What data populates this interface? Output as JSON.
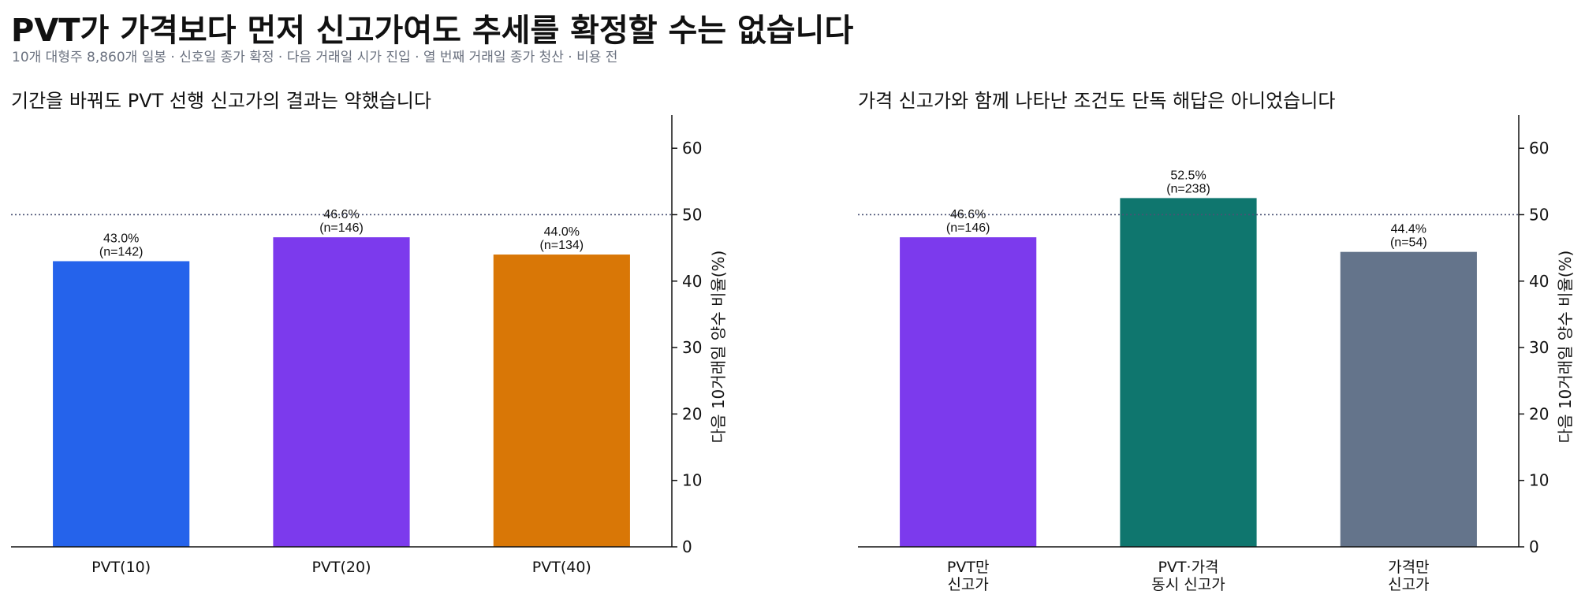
{
  "header": {
    "title": "PVT가 가격보다 먼저 신고가여도 추세를 확정할 수는 없습니다",
    "subtitle": "10개 대형주 8,860개 일봉 · 신호일 종가 확정 · 다음 거래일 시가 진입 · 열 번째 거래일 종가 청산 · 비용 전"
  },
  "chart_data": [
    {
      "type": "bar",
      "title": "기간을 바꿔도 PVT 선행 신고가의 결과는 약했습니다",
      "ylabel": "다음 10거래일 양수 비율(%)",
      "ylim": [
        0,
        65
      ],
      "yticks": [
        0,
        10,
        20,
        30,
        40,
        50,
        60
      ],
      "y_axis_side": "right",
      "reference_line": 50,
      "categories": [
        [
          "PVT(10)"
        ],
        [
          "PVT(20)"
        ],
        [
          "PVT(40)"
        ]
      ],
      "values": [
        43.0,
        46.6,
        44.0
      ],
      "value_labels": [
        "43.0%",
        "46.6%",
        "44.0%"
      ],
      "n_labels": [
        "(n=142)",
        "(n=146)",
        "(n=134)"
      ],
      "colors": [
        "#2563eb",
        "#7c3aed",
        "#d97706"
      ]
    },
    {
      "type": "bar",
      "title": "가격 신고가와 함께 나타난 조건도 단독 해답은 아니었습니다",
      "ylabel": "다음 10거래일 양수 비율(%)",
      "ylim": [
        0,
        65
      ],
      "yticks": [
        0,
        10,
        20,
        30,
        40,
        50,
        60
      ],
      "y_axis_side": "right",
      "reference_line": 50,
      "categories": [
        [
          "PVT만",
          "신고가"
        ],
        [
          "PVT·가격",
          "동시 신고가"
        ],
        [
          "가격만",
          "신고가"
        ]
      ],
      "values": [
        46.6,
        52.5,
        44.4
      ],
      "value_labels": [
        "46.6%",
        "52.5%",
        "44.4%"
      ],
      "n_labels": [
        "(n=146)",
        "(n=238)",
        "(n=54)"
      ],
      "colors": [
        "#7c3aed",
        "#0f766e",
        "#64748b"
      ]
    }
  ]
}
